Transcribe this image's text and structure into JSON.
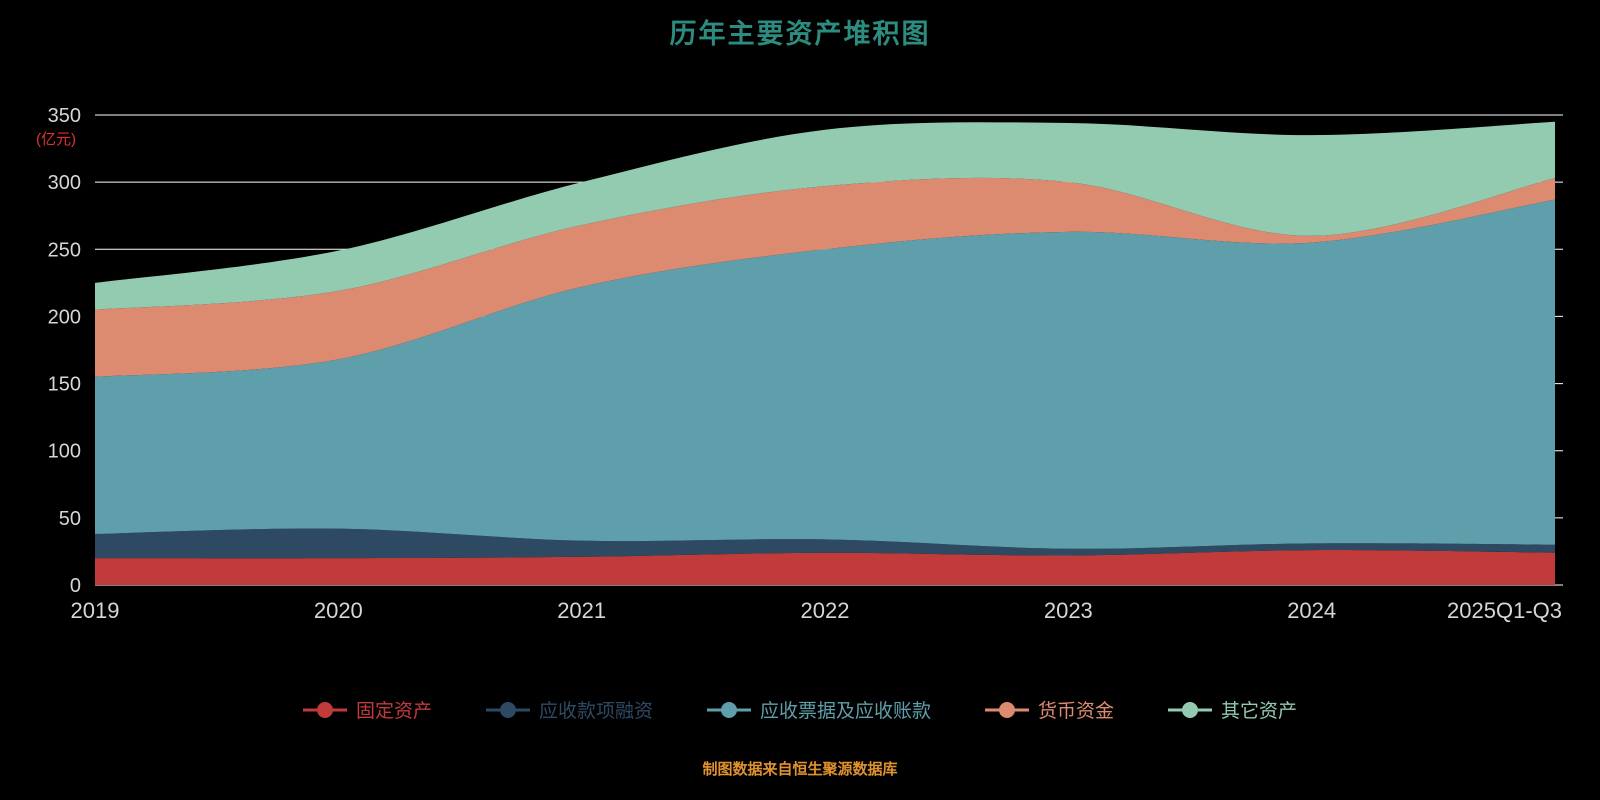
{
  "title": "历年主要资产堆积图",
  "y_axis_unit": "(亿元)",
  "footer": "制图数据来自恒生聚源数据库",
  "colors": {
    "background": "#000000",
    "title": "#2d8c80",
    "footer": "#e0922f",
    "axis_text": "#d6d6d6",
    "unit_label": "#e03131",
    "gridline": "#ffffff"
  },
  "chart_data": {
    "type": "area",
    "stacked": true,
    "title": "历年主要资产堆积图",
    "ylabel": "(亿元)",
    "ylim": [
      0,
      350
    ],
    "yticks": [
      0,
      50,
      100,
      150,
      200,
      250,
      300,
      350
    ],
    "grid": true,
    "legend_position": "bottom",
    "x": [
      "2019",
      "2020",
      "2021",
      "2022",
      "2023",
      "2024",
      "2025Q1-Q3"
    ],
    "series": [
      {
        "name": "固定资产",
        "color": "#c23b3b",
        "values": [
          20,
          20,
          21,
          24,
          22,
          26,
          24
        ]
      },
      {
        "name": "应收款项融资",
        "color": "#2e4a63",
        "values": [
          18,
          22,
          12,
          10,
          5,
          5,
          6
        ]
      },
      {
        "name": "应收票据及应收账款",
        "color": "#5f9fab",
        "values": [
          117,
          126,
          189,
          216,
          236,
          224,
          257
        ]
      },
      {
        "name": "货币资金",
        "color": "#dc8a70",
        "values": [
          50,
          51,
          46,
          47,
          37,
          5,
          16
        ]
      },
      {
        "name": "其它资产",
        "color": "#93cbb1",
        "values": [
          20,
          30,
          32,
          42,
          44,
          75,
          42
        ]
      }
    ]
  }
}
